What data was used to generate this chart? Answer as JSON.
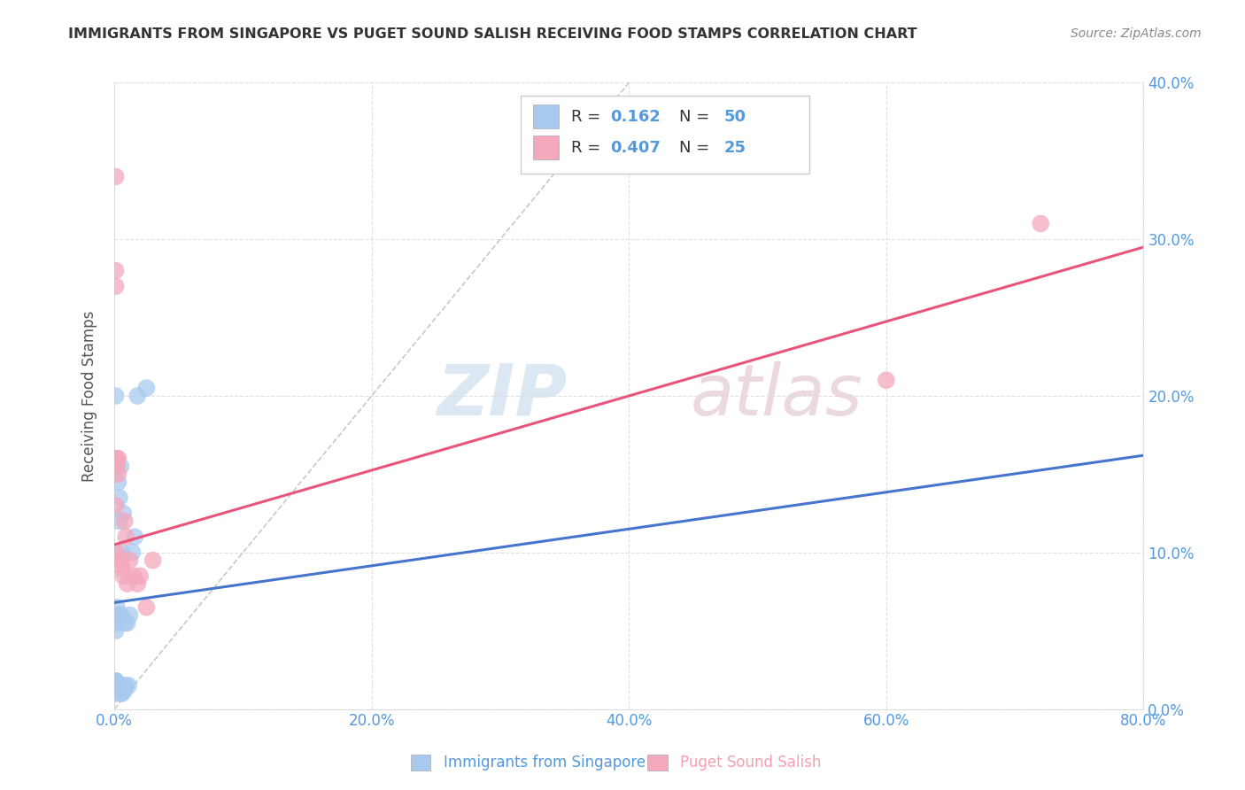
{
  "title": "IMMIGRANTS FROM SINGAPORE VS PUGET SOUND SALISH RECEIVING FOOD STAMPS CORRELATION CHART",
  "source": "Source: ZipAtlas.com",
  "ylabel": "Receiving Food Stamps",
  "xlabel_blue": "Immigrants from Singapore",
  "xlabel_pink": "Puget Sound Salish",
  "xlim": [
    0.0,
    0.8
  ],
  "ylim": [
    0.0,
    0.4
  ],
  "xticks": [
    0.0,
    0.2,
    0.4,
    0.6,
    0.8
  ],
  "yticks": [
    0.0,
    0.1,
    0.2,
    0.3,
    0.4
  ],
  "xtick_labels": [
    "0.0%",
    "20.0%",
    "40.0%",
    "60.0%",
    "80.0%"
  ],
  "ytick_labels": [
    "0.0%",
    "10.0%",
    "20.0%",
    "30.0%",
    "40.0%"
  ],
  "r_blue": "0.162",
  "n_blue": "50",
  "r_pink": "0.407",
  "n_pink": "25",
  "blue_color": "#A8CAEE",
  "pink_color": "#F4A8BC",
  "blue_line_color": "#4477CC",
  "pink_line_color": "#E8547A",
  "diag_color": "#BBBBBB",
  "blue_scatter_x": [
    0.001,
    0.001,
    0.001,
    0.001,
    0.001,
    0.001,
    0.001,
    0.001,
    0.001,
    0.001,
    0.001,
    0.001,
    0.001,
    0.001,
    0.001,
    0.001,
    0.001,
    0.001,
    0.002,
    0.002,
    0.002,
    0.002,
    0.002,
    0.002,
    0.002,
    0.003,
    0.003,
    0.003,
    0.003,
    0.004,
    0.004,
    0.004,
    0.004,
    0.005,
    0.005,
    0.005,
    0.006,
    0.006,
    0.007,
    0.007,
    0.008,
    0.008,
    0.009,
    0.01,
    0.011,
    0.012,
    0.014,
    0.016,
    0.018,
    0.025
  ],
  "blue_scatter_y": [
    0.01,
    0.012,
    0.013,
    0.013,
    0.014,
    0.014,
    0.015,
    0.015,
    0.015,
    0.016,
    0.016,
    0.017,
    0.017,
    0.018,
    0.018,
    0.05,
    0.055,
    0.2,
    0.013,
    0.014,
    0.015,
    0.015,
    0.06,
    0.065,
    0.155,
    0.013,
    0.015,
    0.06,
    0.145,
    0.013,
    0.015,
    0.12,
    0.135,
    0.01,
    0.06,
    0.155,
    0.01,
    0.1,
    0.015,
    0.125,
    0.012,
    0.055,
    0.015,
    0.055,
    0.015,
    0.06,
    0.1,
    0.11,
    0.2,
    0.205
  ],
  "pink_scatter_x": [
    0.001,
    0.001,
    0.001,
    0.001,
    0.001,
    0.002,
    0.002,
    0.002,
    0.003,
    0.003,
    0.004,
    0.005,
    0.006,
    0.007,
    0.008,
    0.009,
    0.01,
    0.012,
    0.015,
    0.018,
    0.02,
    0.025,
    0.03,
    0.6,
    0.72
  ],
  "pink_scatter_y": [
    0.34,
    0.28,
    0.27,
    0.16,
    0.13,
    0.16,
    0.155,
    0.1,
    0.16,
    0.15,
    0.095,
    0.095,
    0.09,
    0.085,
    0.12,
    0.11,
    0.08,
    0.095,
    0.085,
    0.08,
    0.085,
    0.065,
    0.095,
    0.21,
    0.31
  ],
  "blue_line_x": [
    0.0,
    0.8
  ],
  "blue_line_y": [
    0.068,
    0.162
  ],
  "pink_line_x": [
    0.0,
    0.8
  ],
  "pink_line_y": [
    0.105,
    0.295
  ],
  "diag_line_x": [
    0.0,
    0.4
  ],
  "diag_line_y": [
    0.0,
    0.4
  ]
}
